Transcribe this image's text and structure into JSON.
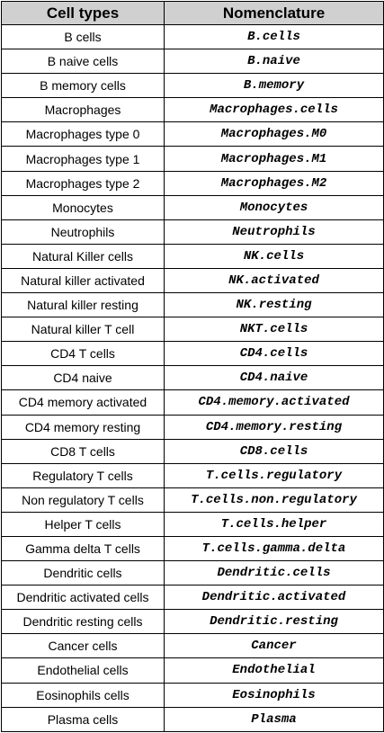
{
  "table": {
    "headers": {
      "cell_types": "Cell types",
      "nomenclature": "Nomenclature"
    },
    "rows": [
      {
        "cell_type": "B cells",
        "nomenclature": "B.cells"
      },
      {
        "cell_type": "B naive cells",
        "nomenclature": "B.naive"
      },
      {
        "cell_type": "B memory cells",
        "nomenclature": "B.memory"
      },
      {
        "cell_type": "Macrophages",
        "nomenclature": "Macrophages.cells"
      },
      {
        "cell_type": "Macrophages type 0",
        "nomenclature": "Macrophages.M0"
      },
      {
        "cell_type": "Macrophages type 1",
        "nomenclature": "Macrophages.M1"
      },
      {
        "cell_type": "Macrophages type 2",
        "nomenclature": "Macrophages.M2"
      },
      {
        "cell_type": "Monocytes",
        "nomenclature": "Monocytes"
      },
      {
        "cell_type": "Neutrophils",
        "nomenclature": "Neutrophils"
      },
      {
        "cell_type": "Natural Killer cells",
        "nomenclature": "NK.cells"
      },
      {
        "cell_type": "Natural killer activated",
        "nomenclature": "NK.activated"
      },
      {
        "cell_type": "Natural killer resting",
        "nomenclature": "NK.resting"
      },
      {
        "cell_type": "Natural killer T cell",
        "nomenclature": "NKT.cells"
      },
      {
        "cell_type": "CD4 T cells",
        "nomenclature": "CD4.cells"
      },
      {
        "cell_type": "CD4 naive",
        "nomenclature": "CD4.naive"
      },
      {
        "cell_type": "CD4 memory activated",
        "nomenclature": "CD4.memory.activated"
      },
      {
        "cell_type": "CD4 memory resting",
        "nomenclature": "CD4.memory.resting"
      },
      {
        "cell_type": "CD8 T cells",
        "nomenclature": "CD8.cells"
      },
      {
        "cell_type": "Regulatory T cells",
        "nomenclature": "T.cells.regulatory"
      },
      {
        "cell_type": "Non regulatory T cells",
        "nomenclature": "T.cells.non.regulatory"
      },
      {
        "cell_type": "Helper T cells",
        "nomenclature": "T.cells.helper"
      },
      {
        "cell_type": "Gamma delta T cells",
        "nomenclature": "T.cells.gamma.delta"
      },
      {
        "cell_type": "Dendritic cells",
        "nomenclature": "Dendritic.cells"
      },
      {
        "cell_type": "Dendritic activated cells",
        "nomenclature": "Dendritic.activated"
      },
      {
        "cell_type": "Dendritic resting cells",
        "nomenclature": "Dendritic.resting"
      },
      {
        "cell_type": "Cancer cells",
        "nomenclature": "Cancer"
      },
      {
        "cell_type": "Endothelial cells",
        "nomenclature": "Endothelial"
      },
      {
        "cell_type": "Eosinophils cells",
        "nomenclature": "Eosinophils"
      },
      {
        "cell_type": "Plasma cells",
        "nomenclature": "Plasma"
      }
    ]
  }
}
